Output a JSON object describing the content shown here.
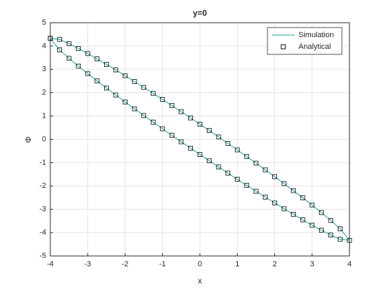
{
  "chart_data": {
    "type": "line",
    "title": "y=0",
    "x_label": "x",
    "y_label": "Φ",
    "x": [
      -4,
      -3.75,
      -3.5,
      -3.25,
      -3,
      -2.75,
      -2.5,
      -2.25,
      -2,
      -1.75,
      -1.5,
      -1.25,
      -1,
      -0.75,
      -0.5,
      -0.25,
      0,
      0.25,
      0.5,
      0.75,
      1,
      1.25,
      1.5,
      1.75,
      2,
      2.25,
      2.5,
      2.75,
      3,
      3.25,
      3.5,
      3.75,
      4,
      3.75,
      3.5,
      3.25,
      3,
      2.75,
      2.5,
      2.25,
      2,
      1.75,
      1.5,
      1.25,
      1,
      0.75,
      0.5,
      0.25,
      0,
      -0.25,
      -0.5,
      -0.75,
      -1,
      -1.25,
      -1.5,
      -1.75,
      -2,
      -2.25,
      -2.5,
      -2.75,
      -3,
      -3.25,
      -3.5,
      -3.75,
      -4
    ],
    "series": [
      {
        "name": "Simulation",
        "color": "#1a9e9e",
        "marker": "none",
        "values": [
          4.33,
          4.285,
          4.104,
          3.897,
          3.678,
          3.449,
          3.213,
          2.973,
          2.728,
          2.478,
          2.227,
          1.97,
          1.712,
          1.45,
          1.186,
          0.92,
          0.65,
          0.378,
          0.104,
          -0.174,
          -0.454,
          -0.736,
          -1.021,
          -1.31,
          -1.602,
          -1.899,
          -2.199,
          -2.505,
          -2.818,
          -3.139,
          -3.474,
          -3.833,
          -4.33,
          -4.285,
          -4.104,
          -3.897,
          -3.678,
          -3.449,
          -3.213,
          -2.973,
          -2.728,
          -2.478,
          -2.227,
          -1.97,
          -1.712,
          -1.45,
          -1.186,
          -0.92,
          -0.65,
          -0.378,
          -0.104,
          0.174,
          0.454,
          0.736,
          1.021,
          1.31,
          1.602,
          1.899,
          2.199,
          2.505,
          2.818,
          3.139,
          3.474,
          3.833,
          4.33
        ]
      },
      {
        "name": "Analytical",
        "color": "#000000",
        "marker": "square",
        "values": [
          4.33,
          4.285,
          4.104,
          3.897,
          3.678,
          3.449,
          3.213,
          2.973,
          2.728,
          2.478,
          2.227,
          1.97,
          1.712,
          1.45,
          1.186,
          0.92,
          0.65,
          0.378,
          0.104,
          -0.174,
          -0.454,
          -0.736,
          -1.021,
          -1.31,
          -1.602,
          -1.899,
          -2.199,
          -2.505,
          -2.818,
          -3.139,
          -3.474,
          -3.833,
          -4.33,
          -4.285,
          -4.104,
          -3.897,
          -3.678,
          -3.449,
          -3.213,
          -2.973,
          -2.728,
          -2.478,
          -2.227,
          -1.97,
          -1.712,
          -1.45,
          -1.186,
          -0.92,
          -0.65,
          -0.378,
          -0.104,
          0.174,
          0.454,
          0.736,
          1.021,
          1.31,
          1.602,
          1.899,
          2.199,
          2.505,
          2.818,
          3.139,
          3.474,
          3.833,
          4.33
        ]
      }
    ],
    "xlim": [
      -4,
      4
    ],
    "xticks": [
      -4,
      -3,
      -2,
      -1,
      0,
      1,
      2,
      3,
      4
    ],
    "ylim": [
      -5,
      5
    ],
    "yticks": [
      -5,
      -4,
      -3,
      -2,
      -1,
      0,
      1,
      2,
      3,
      4,
      5
    ],
    "grid": true,
    "legend_position": "upper-right"
  }
}
